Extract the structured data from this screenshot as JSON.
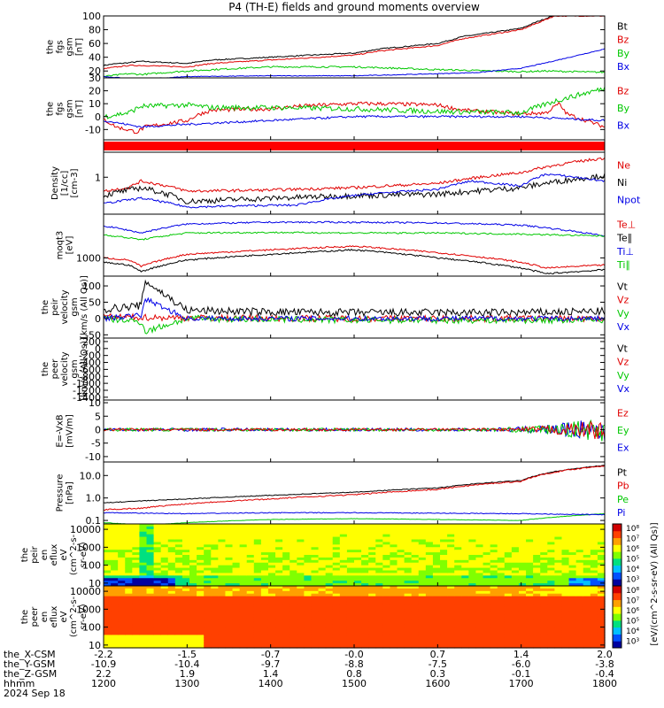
{
  "title": "P4 (TH-E) fields and ground moments overview",
  "colors": {
    "black": "#000000",
    "red": "#e00000",
    "green": "#00c800",
    "blue": "#0000e6",
    "bar_red": "#ff0000"
  },
  "chart_data": [
    {
      "id": "fgs_gsm_mag",
      "type": "line",
      "ylabel": [
        "the",
        "fgs",
        "gsm",
        "[nT]"
      ],
      "ylim": [
        10,
        100
      ],
      "yticks": [
        20,
        40,
        60,
        80,
        100
      ],
      "legend": [
        {
          "name": "Bt",
          "color": "black"
        },
        {
          "name": "Bz",
          "color": "red"
        },
        {
          "name": "By",
          "color": "green"
        },
        {
          "name": "Bx",
          "color": "blue"
        }
      ],
      "series": [
        {
          "name": "Bt",
          "color": "black",
          "noise": 0.8,
          "x": [
            1200,
            1210,
            1230,
            1245,
            1300,
            1330,
            1400,
            1430,
            1500,
            1530,
            1600,
            1630,
            1700,
            1720,
            1740
          ],
          "y": [
            28,
            30,
            32,
            34,
            31,
            36,
            40,
            42,
            46,
            52,
            60,
            70,
            82,
            92,
            101
          ]
        },
        {
          "name": "Bz",
          "color": "red",
          "noise": 0.8,
          "x": [
            1200,
            1210,
            1230,
            1245,
            1300,
            1330,
            1400,
            1430,
            1500,
            1530,
            1600,
            1630,
            1700,
            1720,
            1740
          ],
          "y": [
            23,
            25,
            28,
            28,
            26,
            31,
            36,
            38,
            43,
            49,
            57,
            67,
            80,
            90,
            100
          ]
        },
        {
          "name": "By",
          "color": "green",
          "noise": 1.2,
          "x": [
            1200,
            1230,
            1245,
            1300,
            1330,
            1400,
            1500,
            1600,
            1700,
            1730,
            1800
          ],
          "y": [
            12,
            16,
            15,
            20,
            22,
            26,
            26,
            22,
            19,
            20,
            18
          ]
        },
        {
          "name": "Bx",
          "color": "blue",
          "noise": 0.5,
          "x": [
            1200,
            1245,
            1300,
            1400,
            1500,
            1600,
            1650,
            1700,
            1730,
            1800
          ],
          "y": [
            12,
            8,
            12,
            13,
            13,
            16,
            18,
            24,
            32,
            52
          ]
        }
      ]
    },
    {
      "id": "fgs_gsm_comp",
      "type": "line",
      "ylabel": [
        "the",
        "fgs",
        "gsm",
        "[nT]"
      ],
      "ylim": [
        -18,
        30
      ],
      "yticks": [
        -10,
        0,
        10,
        20,
        30
      ],
      "legend": [
        {
          "name": "Bz",
          "color": "red"
        },
        {
          "name": "By",
          "color": "green"
        },
        {
          "name": "Bx",
          "color": "blue"
        }
      ],
      "series": [
        {
          "name": "Bz",
          "color": "red",
          "noise": 1.5,
          "x": [
            1200,
            1215,
            1240,
            1250,
            1300,
            1315,
            1330,
            1400,
            1430,
            1500,
            1530,
            1600,
            1630,
            1700,
            1730,
            1745,
            1755,
            1800
          ],
          "y": [
            -2,
            -8,
            -12,
            -8,
            -3,
            2,
            5,
            6,
            8,
            10,
            10,
            9,
            5,
            2,
            3,
            10,
            2,
            -8
          ]
        },
        {
          "name": "By",
          "color": "green",
          "noise": 2.0,
          "x": [
            1200,
            1230,
            1245,
            1300,
            1330,
            1400,
            1500,
            1600,
            1700,
            1740,
            1800
          ],
          "y": [
            0,
            3,
            8,
            9,
            7,
            7,
            6,
            4,
            3,
            12,
            22
          ]
        },
        {
          "name": "Bx",
          "color": "blue",
          "noise": 0.8,
          "x": [
            1200,
            1245,
            1300,
            1400,
            1500,
            1600,
            1700,
            1800
          ],
          "y": [
            -3,
            -8,
            -6,
            -3,
            0,
            0,
            0,
            -3
          ]
        }
      ]
    },
    {
      "id": "mode_bar",
      "type": "bar",
      "ylabel": [],
      "series": [
        {
          "name": "",
          "color": "bar_red"
        }
      ]
    },
    {
      "id": "density",
      "type": "line",
      "scale": "log",
      "ylabel": [
        "Density",
        "[1/cc]",
        "[cm-3]"
      ],
      "ylim": [
        0.12,
        4.2
      ],
      "yticks": [
        1
      ],
      "yticklabels": [
        "1"
      ],
      "legend": [
        {
          "name": "Ne",
          "color": "red"
        },
        {
          "name": "Ni",
          "color": "black"
        },
        {
          "name": "Npot",
          "color": "blue"
        }
      ],
      "series": [
        {
          "name": "Ne",
          "color": "red",
          "noise": 0.04,
          "x": [
            1200,
            1230,
            1245,
            1300,
            1400,
            1500,
            1600,
            1700,
            1800
          ],
          "y": [
            0.45,
            0.55,
            0.8,
            0.45,
            0.48,
            0.55,
            0.7,
            1.3,
            3.0
          ]
        },
        {
          "name": "Ni",
          "color": "black",
          "noise": 0.08,
          "x": [
            1200,
            1245,
            1300,
            1400,
            1500,
            1600,
            1700,
            1800
          ],
          "y": [
            0.35,
            0.55,
            0.25,
            0.3,
            0.35,
            0.38,
            0.55,
            1.1
          ]
        },
        {
          "name": "Npot",
          "color": "blue",
          "noise": 0.03,
          "x": [
            1200,
            1245,
            1300,
            1400,
            1430,
            1500,
            1530,
            1600,
            1640,
            1700,
            1730,
            1800
          ],
          "y": [
            0.22,
            0.3,
            0.18,
            0.2,
            0.2,
            0.35,
            0.4,
            0.5,
            0.8,
            0.6,
            1.2,
            0.8
          ]
        }
      ]
    },
    {
      "id": "temperature",
      "type": "line",
      "scale": "log",
      "ylabel": [
        "moqt3",
        "[eV]"
      ],
      "ylim": [
        400,
        9000
      ],
      "yticks": [
        1000
      ],
      "yticklabels": [
        "1000"
      ],
      "legend": [
        {
          "name": "Te⊥",
          "color": "red"
        },
        {
          "name": "Te∥",
          "color": "black"
        },
        {
          "name": "Ti⊥",
          "color": "blue"
        },
        {
          "name": "Ti∥",
          "color": "green"
        }
      ],
      "series": [
        {
          "name": "Te_perp",
          "color": "red",
          "noise": 0.02,
          "x": [
            1200,
            1230,
            1245,
            1300,
            1400,
            1500,
            1600,
            1700,
            1730,
            1800
          ],
          "y": [
            1000,
            900,
            650,
            1200,
            1500,
            1800,
            1300,
            800,
            600,
            700
          ]
        },
        {
          "name": "Te_par",
          "color": "black",
          "noise": 0.02,
          "x": [
            1200,
            1230,
            1245,
            1300,
            1400,
            1500,
            1600,
            1700,
            1730,
            1800
          ],
          "y": [
            800,
            700,
            500,
            900,
            1200,
            1500,
            1000,
            600,
            450,
            550
          ]
        },
        {
          "name": "Ti_perp",
          "color": "blue",
          "noise": 0.02,
          "x": [
            1200,
            1245,
            1300,
            1400,
            1500,
            1600,
            1700,
            1800
          ],
          "y": [
            5000,
            3500,
            5500,
            6000,
            6000,
            5800,
            5200,
            3000
          ]
        },
        {
          "name": "Ti_par",
          "color": "green",
          "noise": 0.02,
          "x": [
            1200,
            1245,
            1300,
            1400,
            1500,
            1600,
            1700,
            1800
          ],
          "y": [
            3200,
            2500,
            3500,
            3600,
            3500,
            3500,
            3300,
            3000
          ]
        }
      ]
    },
    {
      "id": "peir_velocity",
      "type": "line",
      "ylabel": [
        "the",
        "peir",
        "velocity",
        "gsm",
        "[km/s (All Qs)]"
      ],
      "ylim": [
        -60,
        130
      ],
      "yticks": [
        -50,
        0,
        50,
        100
      ],
      "legend": [
        {
          "name": "Vt",
          "color": "black"
        },
        {
          "name": "Vz",
          "color": "red"
        },
        {
          "name": "Vy",
          "color": "green"
        },
        {
          "name": "Vx",
          "color": "blue"
        }
      ],
      "series": [
        {
          "name": "Vt",
          "color": "black",
          "noise": 12,
          "x": [
            1200,
            1245,
            1250,
            1300,
            1400,
            1500,
            1600,
            1700,
            1800
          ],
          "y": [
            28,
            40,
            115,
            25,
            20,
            18,
            18,
            18,
            22
          ]
        },
        {
          "name": "Vz",
          "color": "red",
          "noise": 10,
          "x": [
            1200,
            1300,
            1500,
            1800
          ],
          "y": [
            5,
            2,
            0,
            0
          ]
        },
        {
          "name": "Vy",
          "color": "green",
          "noise": 10,
          "x": [
            1200,
            1245,
            1250,
            1300,
            1500,
            1800
          ],
          "y": [
            0,
            -10,
            -40,
            0,
            -5,
            -5
          ]
        },
        {
          "name": "Vx",
          "color": "blue",
          "noise": 8,
          "x": [
            1200,
            1245,
            1250,
            1300,
            1500,
            1800
          ],
          "y": [
            0,
            10,
            60,
            0,
            0,
            0
          ]
        }
      ]
    },
    {
      "id": "peer_velocity",
      "type": "line",
      "ylabel": [
        "the",
        "peer",
        "velocity",
        "gsm",
        "[km/s (All Qs)]"
      ],
      "ylim": [
        -1480,
        300
      ],
      "yticks": [
        -1400,
        -1200,
        -1000,
        -800,
        -600,
        -400,
        -200,
        0,
        200
      ],
      "legend": [
        {
          "name": "Vt",
          "color": "black"
        },
        {
          "name": "Vz",
          "color": "red"
        },
        {
          "name": "Vy",
          "color": "green"
        },
        {
          "name": "Vx",
          "color": "blue"
        }
      ],
      "series": []
    },
    {
      "id": "efield",
      "type": "line",
      "ylabel": [
        "E=-VxB",
        "[mV/m]"
      ],
      "ylim": [
        -12,
        11
      ],
      "yticks": [
        -10,
        -5,
        0,
        5,
        10
      ],
      "legend": [
        {
          "name": "Ez",
          "color": "red"
        },
        {
          "name": "Ey",
          "color": "green"
        },
        {
          "name": "Ex",
          "color": "blue"
        }
      ],
      "series": [
        {
          "name": "Ex",
          "color": "blue",
          "noise": 0.6,
          "grow": true,
          "x": [
            1200,
            1800
          ],
          "y": [
            0,
            0
          ]
        },
        {
          "name": "Ey",
          "color": "green",
          "noise": 0.6,
          "grow": true,
          "x": [
            1200,
            1800
          ],
          "y": [
            0,
            0
          ]
        },
        {
          "name": "Ez",
          "color": "red",
          "noise": 0.5,
          "grow": true,
          "x": [
            1200,
            1800
          ],
          "y": [
            0,
            0
          ]
        }
      ]
    },
    {
      "id": "pressure",
      "type": "line",
      "scale": "log",
      "ylabel": [
        "Pressure",
        "[nPa]"
      ],
      "ylim": [
        0.07,
        40
      ],
      "yticks": [
        0.1,
        1.0,
        10.0
      ],
      "yticklabels": [
        "0.1",
        "1.0",
        "10.0"
      ],
      "legend": [
        {
          "name": "Pt",
          "color": "black"
        },
        {
          "name": "Pb",
          "color": "red"
        },
        {
          "name": "Pe",
          "color": "green"
        },
        {
          "name": "Pi",
          "color": "blue"
        }
      ],
      "series": [
        {
          "name": "Pt",
          "color": "black",
          "noise": 0.02,
          "x": [
            1200,
            1300,
            1400,
            1500,
            1600,
            1700,
            1800
          ],
          "y": [
            0.6,
            0.9,
            1.3,
            1.8,
            2.8,
            6,
            28
          ]
        },
        {
          "name": "Pb",
          "color": "red",
          "noise": 0.03,
          "x": [
            1200,
            1245,
            1300,
            1400,
            1500,
            1600,
            1700,
            1800
          ],
          "y": [
            0.3,
            0.35,
            0.55,
            0.9,
            1.4,
            2.4,
            5.5,
            27
          ]
        },
        {
          "name": "Pe",
          "color": "green",
          "noise": 0.01,
          "x": [
            1200,
            1250,
            1300,
            1400,
            1500,
            1600,
            1700,
            1800
          ],
          "y": [
            0.08,
            0.06,
            0.08,
            0.11,
            0.12,
            0.11,
            0.1,
            0.2
          ]
        },
        {
          "name": "Pi",
          "color": "blue",
          "noise": 0.02,
          "x": [
            1200,
            1300,
            1400,
            1500,
            1600,
            1700,
            1800
          ],
          "y": [
            0.22,
            0.2,
            0.22,
            0.22,
            0.21,
            0.2,
            0.18
          ]
        }
      ]
    },
    {
      "id": "peir_spec",
      "type": "heatmap",
      "scale": "log",
      "ylabel": [
        "the",
        "peir",
        "en",
        "eflux",
        "eV",
        "(cm^2-s-",
        "sr-eV)"
      ],
      "ylim": [
        7,
        20000
      ],
      "yticks": [
        10,
        100,
        1000,
        10000
      ],
      "yticklabels": [
        "10",
        "100",
        "1000",
        "10000"
      ]
    },
    {
      "id": "peer_spec",
      "type": "heatmap",
      "scale": "log",
      "ylabel": [
        "the",
        "peer",
        "en",
        "eflux",
        "eV",
        "(cm^2-s-",
        "sr-eV)"
      ],
      "ylim": [
        7,
        20000
      ],
      "yticks": [
        10,
        100,
        1000,
        10000
      ],
      "yticklabels": [
        "10",
        "100",
        "1000",
        "10000"
      ]
    }
  ],
  "colorbar": {
    "labels": [
      "10⁸",
      "10⁷",
      "10⁶",
      "10⁵",
      "10⁴",
      "10³"
    ],
    "units": "[eV/(cm^2-s-sr-eV) (All Qs)]"
  },
  "xaxis": {
    "ticks": [
      1200,
      1300,
      1400,
      1500,
      1600,
      1700,
      1800
    ],
    "rows": [
      {
        "label": "the_X-CSM",
        "values": [
          "-2.2",
          "-1.5",
          "-0.7",
          "-0.0",
          "0.7",
          "1.4",
          "2.0"
        ]
      },
      {
        "label": "the_Y-GSM",
        "values": [
          "-10.9",
          "-10.4",
          "-9.7",
          "-8.8",
          "-7.5",
          "-6.0",
          "-3.8"
        ]
      },
      {
        "label": "the_Z-GSM",
        "values": [
          "2.2",
          "1.9",
          "1.4",
          "0.8",
          "0.3",
          "-0.1",
          "-0.4"
        ]
      },
      {
        "label": "hhmm",
        "values": [
          "1200",
          "1300",
          "1400",
          "1500",
          "1600",
          "1700",
          "1800"
        ]
      }
    ],
    "date": "2024 Sep 18"
  }
}
